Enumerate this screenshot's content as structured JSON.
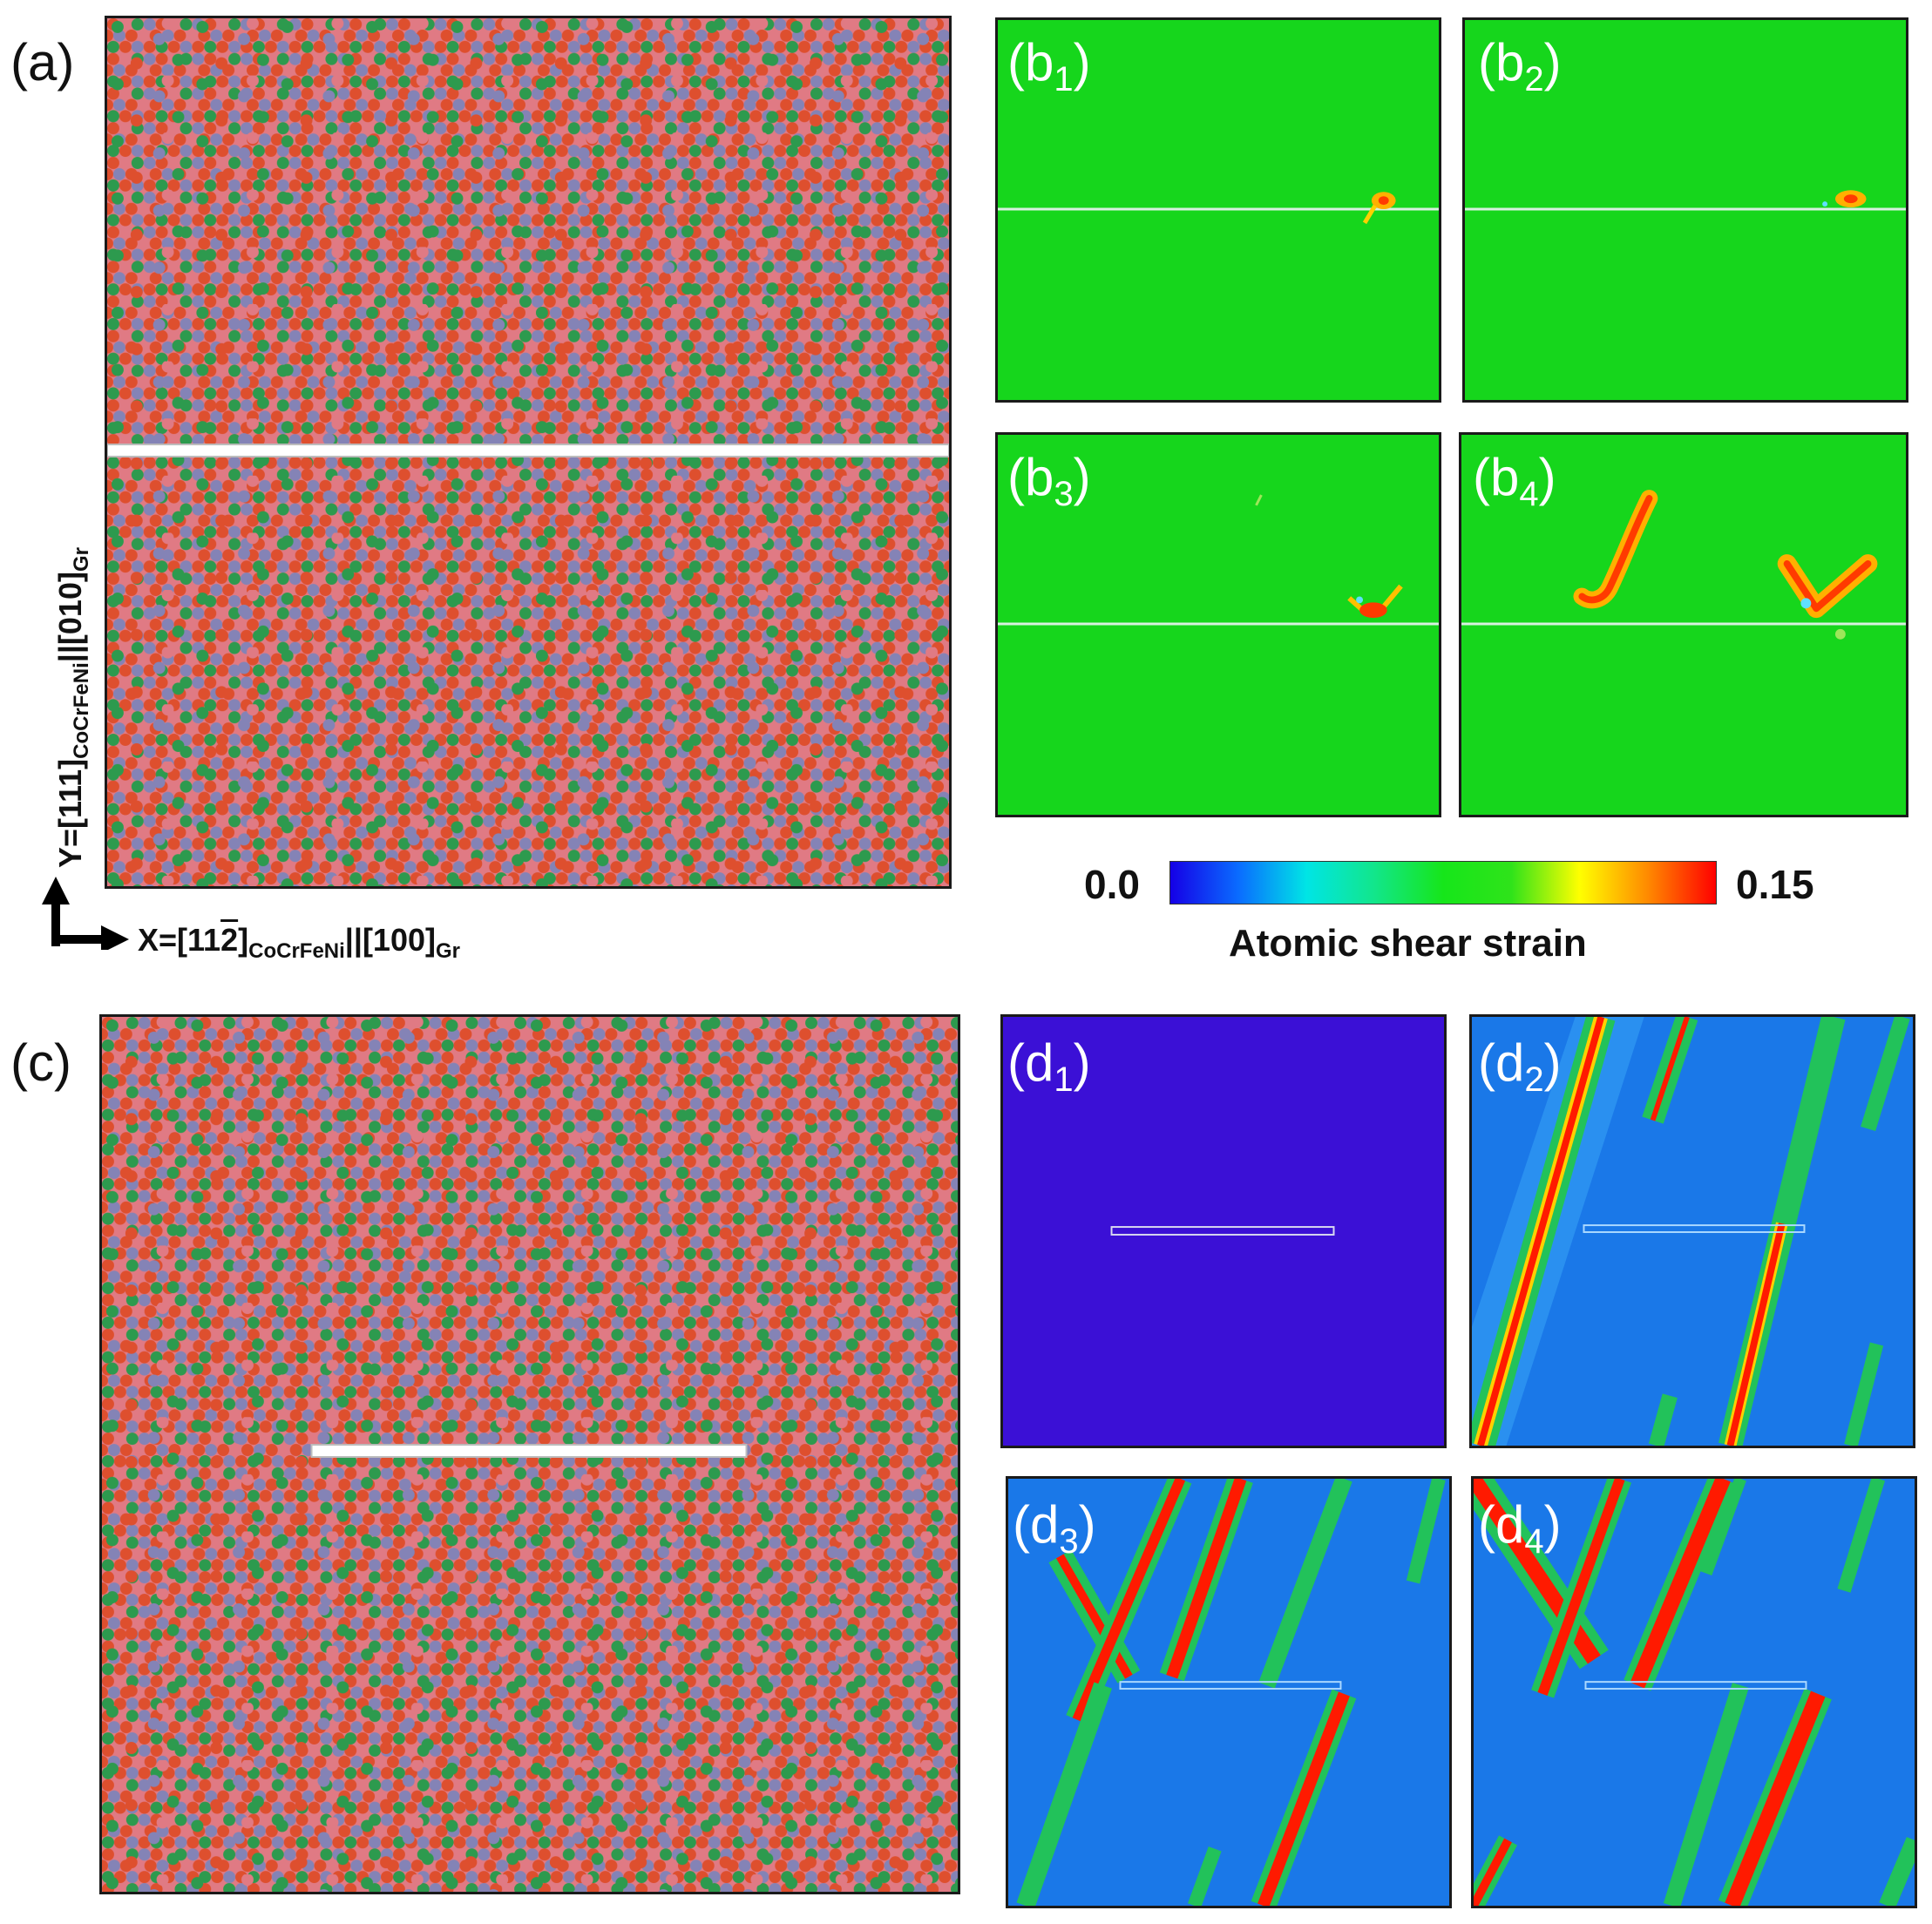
{
  "panels": {
    "a": "(a)",
    "c": "(c)",
    "b": [
      {
        "letter": "(b",
        "sub": "1",
        "close": ")"
      },
      {
        "letter": "(b",
        "sub": "2",
        "close": ")"
      },
      {
        "letter": "(b",
        "sub": "3",
        "close": ")"
      },
      {
        "letter": "(b",
        "sub": "4",
        "close": ")"
      }
    ],
    "d": [
      {
        "letter": "(d",
        "sub": "1",
        "close": ")"
      },
      {
        "letter": "(d",
        "sub": "2",
        "close": ")"
      },
      {
        "letter": "(d",
        "sub": "3",
        "close": ")"
      },
      {
        "letter": "(d",
        "sub": "4",
        "close": ")"
      }
    ]
  },
  "axes": {
    "x": {
      "prefix": "X=[11",
      "bar_digit": "2",
      "suffix": "]",
      "sub1": "CoCrFeNi",
      "mid": "||[100]",
      "sub2": "Gr"
    },
    "y": {
      "prefix": "Y=[111]",
      "sub1": "CoCrFeNi",
      "mid": "||[010]",
      "sub2": "Gr"
    }
  },
  "colorbar": {
    "min_label": "0.0",
    "max_label": "0.15",
    "title": "Atomic shear strain",
    "min": 0.0,
    "max": 0.15,
    "stops": [
      "#1500e6",
      "#0a6cff",
      "#00e5e5",
      "#12e68a",
      "#16e61a",
      "#2fe31a",
      "#ffff00",
      "#ff8a00",
      "#ff0000"
    ]
  },
  "atom_colors": {
    "pink": "#e07a84",
    "red": "#de4f2e",
    "green": "#2d9a4e",
    "blue": "#8483b6"
  },
  "strain_colors": {
    "background_b": "#16d61c",
    "background_d1": "#3b10d6",
    "background_d": "#1a78e8",
    "band_outer": "#22c25a",
    "band_inner": "#ff1a00",
    "band_mid": "#ffd000",
    "crack": "#d8f0e0"
  }
}
